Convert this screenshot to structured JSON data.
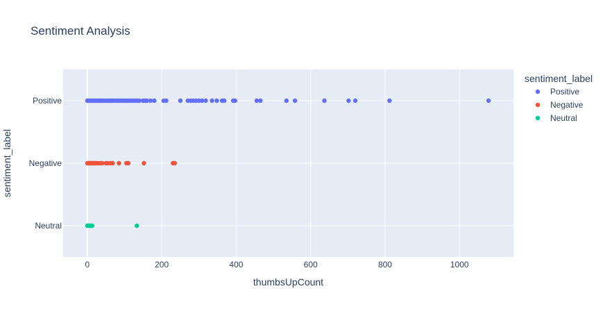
{
  "chart_data": {
    "type": "scatter",
    "title": "Sentiment Analysis",
    "xlabel": "thumbsUpCount",
    "ylabel": "sentiment_label",
    "xlim": [
      -65,
      1145
    ],
    "x_ticks": [
      0,
      200,
      400,
      600,
      800,
      1000
    ],
    "x_tick_labels": [
      "0",
      "200",
      "400",
      "600",
      "800",
      "1000"
    ],
    "categories": [
      "Positive",
      "Negative",
      "Neutral"
    ],
    "grid": true,
    "legend": {
      "title": "sentiment_label",
      "placement": "top-right"
    },
    "series": [
      {
        "name": "Positive",
        "color": "#636efa",
        "category": "Positive",
        "x": [
          0,
          3,
          5,
          8,
          10,
          13,
          15,
          18,
          20,
          23,
          26,
          29,
          32,
          35,
          38,
          42,
          46,
          50,
          54,
          58,
          62,
          66,
          70,
          75,
          80,
          85,
          90,
          95,
          100,
          105,
          110,
          115,
          120,
          125,
          130,
          135,
          140,
          150,
          155,
          160,
          170,
          180,
          205,
          212,
          250,
          270,
          278,
          285,
          292,
          300,
          308,
          318,
          335,
          348,
          362,
          368,
          392,
          397,
          455,
          465,
          535,
          558,
          637,
          702,
          720,
          812,
          1078
        ]
      },
      {
        "name": "Negative",
        "color": "#ef553b",
        "category": "Negative",
        "x": [
          0,
          2,
          4,
          6,
          8,
          10,
          12,
          14,
          16,
          18,
          20,
          23,
          26,
          30,
          35,
          40,
          50,
          55,
          62,
          68,
          85,
          105,
          110,
          152,
          230,
          235
        ]
      },
      {
        "name": "Neutral",
        "color": "#00cc96",
        "category": "Neutral",
        "x": [
          0,
          3,
          6,
          9,
          13,
          133
        ]
      }
    ]
  }
}
